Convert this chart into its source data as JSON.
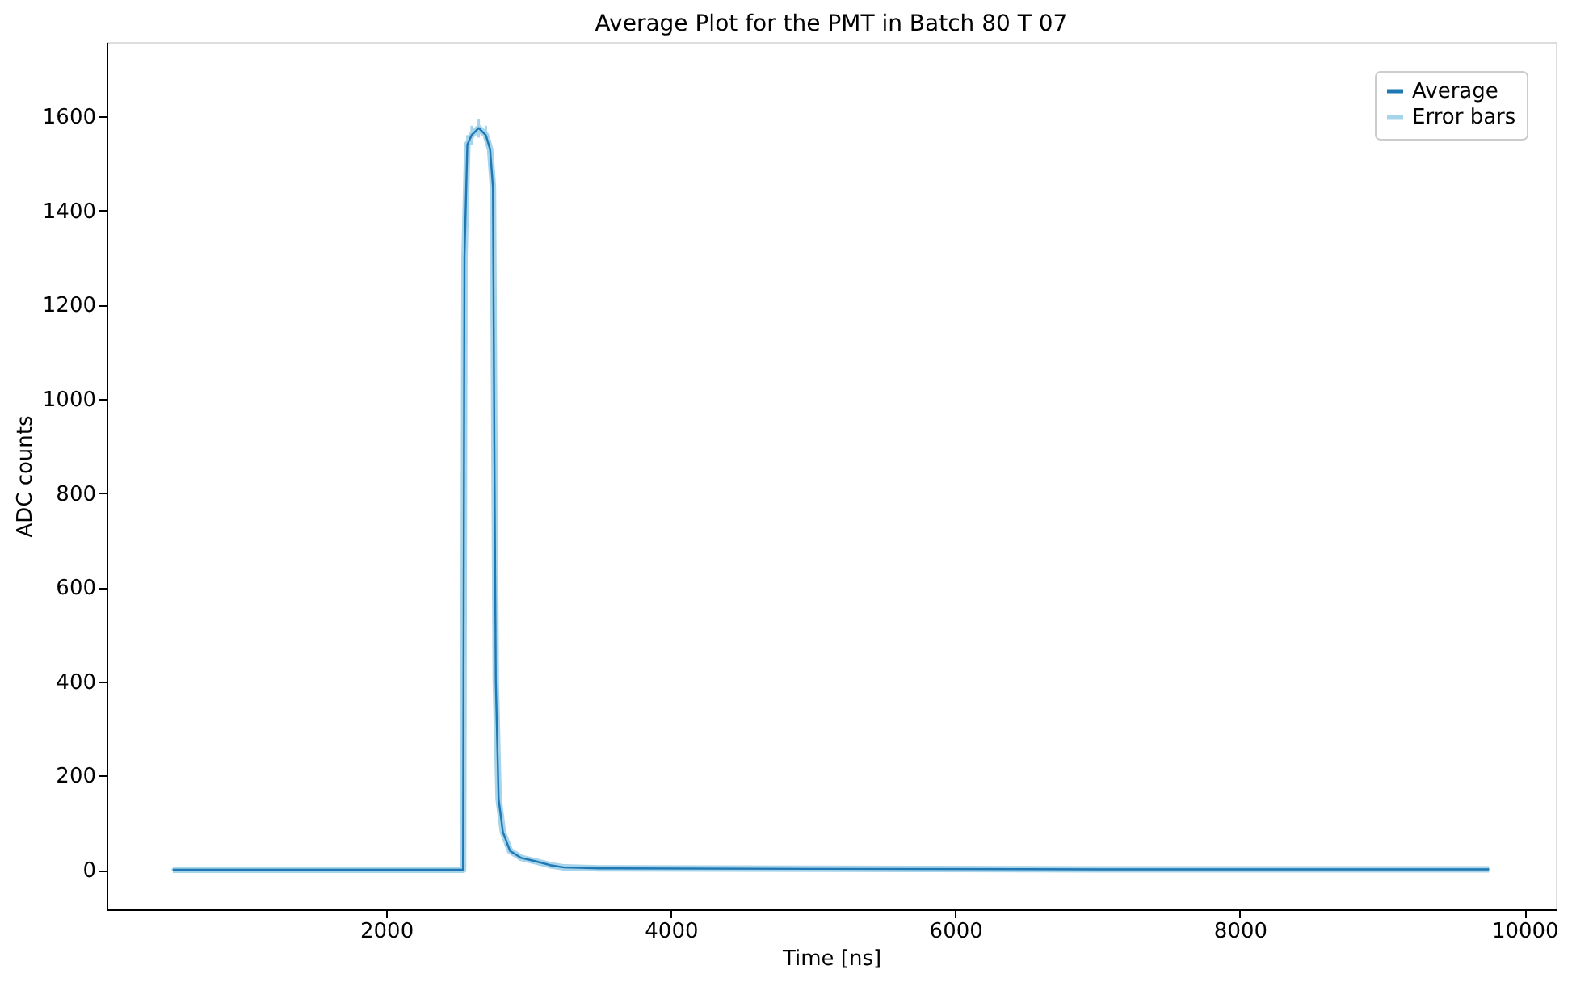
{
  "chart_data": {
    "type": "line",
    "title": "Average Plot for the PMT in Batch 80 T 07",
    "xlabel": "Time [ns]",
    "ylabel": "ADC counts",
    "x": [
      500,
      1500,
      2500,
      2540,
      2550,
      2570,
      2600,
      2650,
      2700,
      2730,
      2750,
      2760,
      2770,
      2790,
      2820,
      2870,
      2950,
      3050,
      3150,
      3250,
      3500,
      5000,
      7000,
      9750
    ],
    "series": [
      {
        "name": "Average",
        "color": "#1f77b4",
        "values": [
          0,
          0,
          0,
          0,
          1300,
          1540,
          1560,
          1575,
          1560,
          1530,
          1450,
          900,
          400,
          150,
          80,
          40,
          25,
          18,
          10,
          5,
          3,
          2,
          1,
          1
        ]
      },
      {
        "name": "Error bars",
        "color": "#a6d4ea",
        "values": [
          0,
          0,
          0,
          0,
          1300,
          1540,
          1560,
          1575,
          1560,
          1530,
          1450,
          900,
          400,
          150,
          80,
          40,
          25,
          18,
          10,
          5,
          3,
          2,
          1,
          1
        ],
        "errors": [
          3,
          3,
          3,
          3,
          20,
          20,
          20,
          20,
          20,
          20,
          20,
          15,
          10,
          5,
          4,
          3,
          3,
          3,
          3,
          3,
          3,
          3,
          3,
          3
        ]
      }
    ],
    "xlim": [
      35,
      10220
    ],
    "ylim": [
      -84,
      1758
    ],
    "xticks": [
      2000,
      4000,
      6000,
      8000,
      10000
    ],
    "yticks": [
      0,
      200,
      400,
      600,
      800,
      1000,
      1200,
      1400,
      1600
    ],
    "legend": "top right",
    "grid": false
  }
}
